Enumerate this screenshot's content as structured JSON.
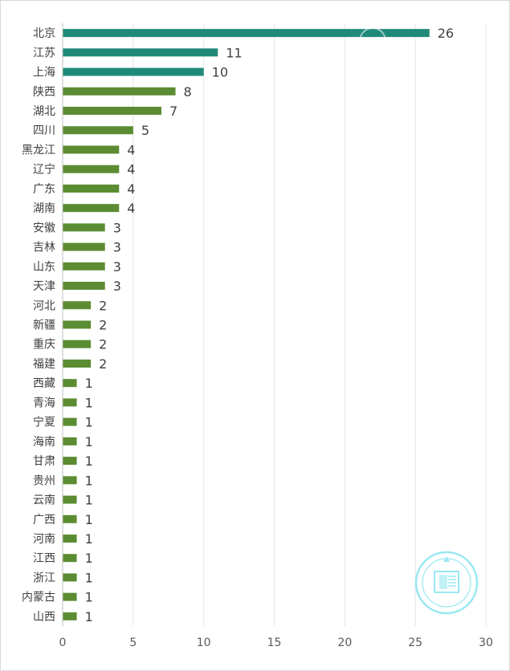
{
  "chart_data": {
    "type": "bar",
    "orientation": "horizontal",
    "categories": [
      "北京",
      "江苏",
      "上海",
      "陕西",
      "湖北",
      "四川",
      "黑龙江",
      "辽宁",
      "广东",
      "湖南",
      "安徽",
      "吉林",
      "山东",
      "天津",
      "河北",
      "新疆",
      "重庆",
      "福建",
      "西藏",
      "青海",
      "宁夏",
      "海南",
      "甘肃",
      "贵州",
      "云南",
      "广西",
      "河南",
      "江西",
      "浙江",
      "内蒙古",
      "山西"
    ],
    "values": [
      26,
      11,
      10,
      8,
      7,
      5,
      4,
      4,
      4,
      4,
      3,
      3,
      3,
      3,
      2,
      2,
      2,
      2,
      1,
      1,
      1,
      1,
      1,
      1,
      1,
      1,
      1,
      1,
      1,
      1,
      1
    ],
    "bar_colors": [
      "#1f8a7a",
      "#1f8a7a",
      "#1f8a7a",
      "#5b8c32",
      "#5b8c32",
      "#5b8c32",
      "#5b8c32",
      "#5b8c32",
      "#5b8c32",
      "#5b8c32",
      "#5b8c32",
      "#5b8c32",
      "#5b8c32",
      "#5b8c32",
      "#5b8c32",
      "#5b8c32",
      "#5b8c32",
      "#5b8c32",
      "#5b8c32",
      "#5b8c32",
      "#5b8c32",
      "#5b8c32",
      "#5b8c32",
      "#5b8c32",
      "#5b8c32",
      "#5b8c32",
      "#5b8c32",
      "#5b8c32",
      "#5b8c32",
      "#5b8c32",
      "#5b8c32"
    ],
    "xlim": [
      0,
      30
    ],
    "x_ticks": [
      0,
      5,
      10,
      15,
      20,
      25,
      30
    ],
    "grid": "vertical",
    "data_labels": true,
    "title": "",
    "xlabel": "",
    "ylabel": ""
  },
  "colors": {
    "teal": "#1f8a7a",
    "green": "#5b8c32",
    "grid": "#e6e6e6",
    "axis": "#bfbfbf",
    "watermark": "#7fe3ef"
  }
}
